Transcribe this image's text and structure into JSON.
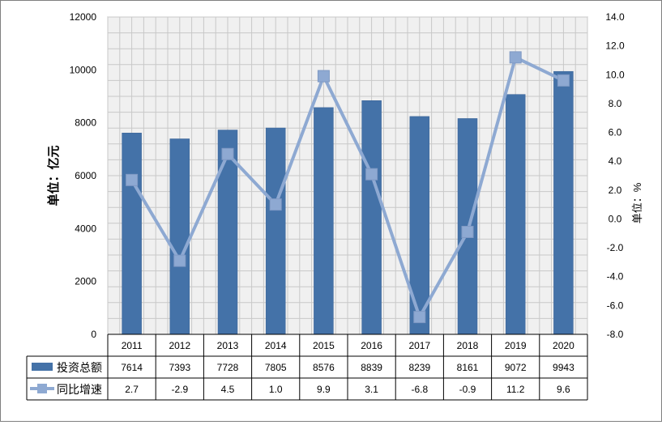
{
  "chart_data": {
    "type": "bar",
    "categories": [
      "2011",
      "2012",
      "2013",
      "2014",
      "2015",
      "2016",
      "2017",
      "2018",
      "2019",
      "2020"
    ],
    "series": [
      {
        "name": "投资总额",
        "type": "bar",
        "axis": "left",
        "color": "#4472a8",
        "values": [
          7614,
          7393,
          7728,
          7805,
          8576,
          8839,
          8239,
          8161,
          9072,
          9943
        ],
        "labels": [
          "7614",
          "7393",
          "7728",
          "7805",
          "8576",
          "8839",
          "8239",
          "8161",
          "9072",
          "9943"
        ]
      },
      {
        "name": "同比增速",
        "type": "line",
        "axis": "right",
        "color": "#8ea9d2",
        "values": [
          2.7,
          -2.9,
          4.5,
          1.0,
          9.9,
          3.1,
          -6.8,
          -0.9,
          11.2,
          9.6
        ],
        "labels": [
          "2.7",
          "-2.9",
          "4.5",
          "1.0",
          "9.9",
          "3.1",
          "-6.8",
          "-0.9",
          "11.2",
          "9.6"
        ]
      }
    ],
    "ylabel": "单位：亿元",
    "y2label": "单位：%",
    "ylim": [
      0,
      12000
    ],
    "y2lim": [
      -8,
      14
    ],
    "yticks": [
      "0",
      "2000",
      "4000",
      "6000",
      "8000",
      "10000",
      "12000"
    ],
    "y2ticks": [
      "-8.0",
      "-6.0",
      "-4.0",
      "-2.0",
      "0.0",
      "2.0",
      "4.0",
      "6.0",
      "8.0",
      "10.0",
      "12.0",
      "14.0"
    ],
    "grid": true,
    "legend": "data-table-below",
    "colors": {
      "plot_bg": "#f0f0f0",
      "grid": "#c8c8c8",
      "bar": "#4472a8",
      "line": "#8ea9d2"
    }
  }
}
